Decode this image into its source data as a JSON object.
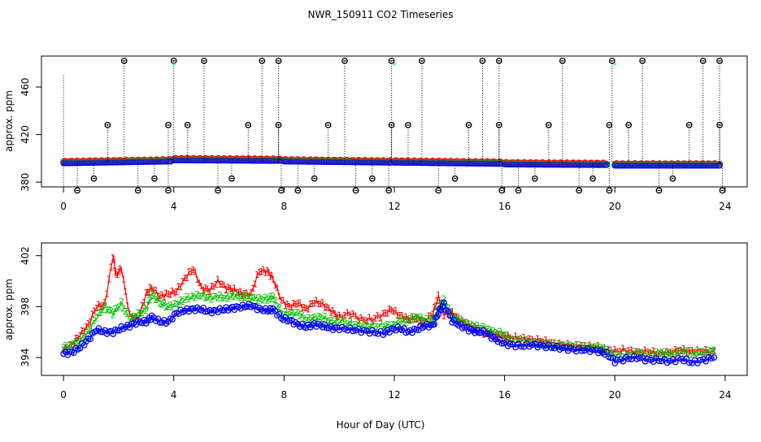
{
  "title": "NWR_150911  CO2 Timeseries",
  "xlabel": "Hour of Day (UTC)",
  "colors": {
    "red": "#ff0000",
    "green": "#00c000",
    "blue": "#0000ff",
    "cyan": "#00d0ff",
    "black": "#000000"
  },
  "chart_data": [
    {
      "type": "scatter",
      "name": "top-panel",
      "ylabel": "approx. ppm",
      "xlim": [
        -0.8,
        24.8
      ],
      "ylim": [
        376,
        486
      ],
      "x_ticks": [
        "0",
        "4",
        "8",
        "12",
        "16",
        "20",
        "24"
      ],
      "x_tick_values": [
        0,
        4,
        8,
        12,
        16,
        20,
        24
      ],
      "y_ticks": [
        "380",
        "420",
        "460"
      ],
      "y_tick_values": [
        380,
        420,
        460
      ],
      "baseline_segments": [
        {
          "x_start": 0.0,
          "x_end": 3.9,
          "y_start": 396.0,
          "y_end": 397.5
        },
        {
          "x_start": 4.0,
          "x_end": 7.9,
          "y_start": 398.5,
          "y_end": 398.0
        },
        {
          "x_start": 8.0,
          "x_end": 11.9,
          "y_start": 397.5,
          "y_end": 396.5
        },
        {
          "x_start": 12.0,
          "x_end": 15.9,
          "y_start": 396.5,
          "y_end": 395.5
        },
        {
          "x_start": 16.0,
          "x_end": 19.7,
          "y_start": 395.0,
          "y_end": 394.5
        },
        {
          "x_start": 20.0,
          "x_end": 23.8,
          "y_start": 394.0,
          "y_end": 394.0
        }
      ],
      "high_flags_hour": [
        2.2,
        4.0,
        5.1,
        7.2,
        7.8,
        10.2,
        11.9,
        13.0,
        15.2,
        15.8,
        18.1,
        19.9,
        21.0,
        23.2,
        23.8
      ],
      "high_flag_value": 482,
      "mid_flags_hour": [
        1.6,
        3.8,
        4.5,
        6.7,
        7.8,
        9.6,
        11.9,
        12.5,
        14.7,
        15.8,
        17.6,
        19.8,
        20.5,
        22.7,
        23.8
      ],
      "mid_flag_value": 428,
      "low_flags_hour": [
        0.5,
        2.7,
        3.8,
        5.6,
        7.9,
        8.5,
        10.6,
        11.8,
        13.6,
        15.9,
        16.5,
        18.7,
        19.8,
        21.6,
        23.9
      ],
      "low_flag_value": 373,
      "vlow_flags_hour": [
        1.1,
        3.3,
        6.1,
        9.1,
        11.2,
        14.2,
        17.1,
        19.2,
        22.1
      ],
      "vlow_flag_value": 383,
      "cyan_points": [
        {
          "x": 4.0,
          "y": 478
        },
        {
          "x": 12.0,
          "y": 478
        },
        {
          "x": 20.0,
          "y": 478
        }
      ]
    },
    {
      "type": "line",
      "name": "bottom-panel",
      "ylabel": "approx. ppm",
      "xlim": [
        -0.8,
        24.8
      ],
      "ylim": [
        392.6,
        403.0
      ],
      "x_ticks": [
        "0",
        "4",
        "8",
        "12",
        "16",
        "20",
        "24"
      ],
      "x_tick_values": [
        0,
        4,
        8,
        12,
        16,
        20,
        24
      ],
      "y_ticks": [
        "394",
        "398",
        "402"
      ],
      "y_tick_values": [
        394,
        398,
        402
      ],
      "series": [
        {
          "name": "1",
          "marker": "1",
          "color": "#ff0000",
          "x": [
            0.0,
            0.3,
            0.6,
            0.9,
            1.2,
            1.5,
            1.8,
            1.9,
            2.1,
            2.4,
            2.7,
            3.0,
            3.2,
            3.5,
            3.8,
            4.1,
            4.4,
            4.7,
            5.0,
            5.3,
            5.6,
            5.9,
            6.2,
            6.5,
            6.8,
            7.1,
            7.4,
            7.6,
            7.9,
            8.2,
            8.5,
            8.8,
            9.1,
            9.4,
            9.7,
            10.0,
            10.4,
            10.8,
            11.2,
            11.6,
            11.9,
            12.2,
            12.5,
            12.8,
            13.1,
            13.4,
            13.6,
            13.8,
            14.1,
            14.4,
            14.7,
            15.0,
            15.3,
            15.6,
            15.9,
            16.2,
            16.6,
            17.0,
            17.4,
            17.8,
            18.2,
            18.6,
            19.0,
            19.4,
            19.7,
            20.0,
            20.4,
            20.8,
            21.2,
            21.6,
            22.0,
            22.4,
            22.8,
            23.2,
            23.6
          ],
          "y": [
            394.6,
            395.0,
            395.8,
            396.6,
            398.0,
            398.2,
            402.0,
            400.5,
            401.0,
            397.3,
            397.0,
            399.0,
            399.5,
            398.8,
            399.0,
            399.2,
            400.2,
            401.0,
            399.5,
            399.3,
            400.0,
            399.5,
            399.3,
            399.0,
            399.0,
            400.8,
            400.8,
            400.2,
            398.5,
            398.0,
            398.3,
            397.8,
            398.4,
            398.2,
            397.7,
            397.2,
            397.5,
            397.0,
            397.0,
            397.4,
            397.8,
            397.3,
            397.0,
            397.1,
            396.8,
            397.5,
            398.8,
            397.4,
            397.5,
            396.9,
            396.5,
            396.2,
            395.9,
            395.8,
            395.7,
            395.6,
            395.5,
            395.4,
            395.3,
            395.1,
            395.0,
            394.9,
            394.9,
            394.8,
            394.6,
            394.5,
            394.6,
            394.4,
            394.5,
            394.3,
            394.4,
            394.6,
            394.5,
            394.5,
            394.5
          ]
        },
        {
          "name": "2",
          "marker": "2",
          "color": "#00c000",
          "x": [
            0.0,
            0.3,
            0.6,
            0.9,
            1.2,
            1.5,
            1.8,
            2.1,
            2.4,
            2.7,
            3.0,
            3.2,
            3.5,
            3.8,
            4.1,
            4.4,
            4.7,
            5.0,
            5.3,
            5.6,
            5.9,
            6.2,
            6.5,
            6.8,
            7.1,
            7.4,
            7.6,
            7.9,
            8.2,
            8.5,
            8.8,
            9.1,
            9.4,
            9.7,
            10.0,
            10.4,
            10.8,
            11.2,
            11.6,
            11.9,
            12.2,
            12.5,
            12.8,
            13.1,
            13.4,
            13.6,
            13.8,
            14.1,
            14.4,
            14.7,
            15.0,
            15.3,
            15.6,
            15.9,
            16.2,
            16.6,
            17.0,
            17.4,
            17.8,
            18.2,
            18.6,
            19.0,
            19.4,
            19.7,
            20.0,
            20.4,
            20.8,
            21.2,
            21.6,
            22.0,
            22.4,
            22.8,
            23.2,
            23.6
          ],
          "y": [
            394.8,
            395.0,
            395.3,
            396.0,
            397.2,
            398.0,
            397.5,
            398.3,
            397.0,
            397.4,
            397.8,
            399.0,
            398.3,
            398.0,
            398.2,
            398.6,
            398.8,
            398.9,
            398.7,
            398.8,
            398.7,
            398.9,
            398.8,
            398.7,
            398.6,
            398.6,
            398.8,
            397.5,
            397.4,
            397.5,
            397.0,
            397.1,
            397.2,
            396.8,
            396.9,
            396.7,
            396.6,
            396.5,
            396.5,
            396.5,
            396.9,
            396.9,
            397.2,
            396.9,
            397.0,
            397.8,
            398.5,
            397.2,
            396.9,
            396.6,
            396.4,
            396.3,
            396.0,
            395.9,
            395.4,
            395.3,
            395.2,
            395.1,
            395.0,
            394.9,
            394.9,
            394.8,
            394.8,
            394.5,
            394.2,
            394.2,
            394.4,
            394.2,
            394.4,
            394.3,
            394.5,
            394.3,
            394.4,
            394.6
          ]
        },
        {
          "name": "3",
          "marker": "3",
          "color": "#0000ff",
          "x": [
            0.0,
            0.3,
            0.6,
            0.9,
            1.2,
            1.5,
            1.8,
            2.1,
            2.4,
            2.7,
            3.0,
            3.2,
            3.5,
            3.8,
            4.1,
            4.4,
            4.7,
            5.0,
            5.3,
            5.6,
            5.9,
            6.2,
            6.5,
            6.8,
            7.1,
            7.4,
            7.6,
            7.9,
            8.2,
            8.5,
            8.8,
            9.1,
            9.4,
            9.7,
            10.0,
            10.4,
            10.8,
            11.2,
            11.6,
            11.9,
            12.2,
            12.5,
            12.8,
            13.1,
            13.4,
            13.6,
            13.8,
            14.1,
            14.4,
            14.7,
            15.0,
            15.3,
            15.6,
            15.9,
            16.2,
            16.6,
            17.0,
            17.4,
            17.8,
            18.2,
            18.6,
            19.0,
            19.4,
            19.7,
            20.0,
            20.4,
            20.8,
            21.2,
            21.6,
            22.0,
            22.4,
            22.8,
            23.2,
            23.6
          ],
          "y": [
            394.3,
            394.4,
            394.8,
            395.4,
            396.2,
            396.0,
            396.0,
            396.3,
            396.5,
            396.8,
            396.8,
            397.2,
            396.8,
            396.8,
            397.5,
            397.7,
            397.8,
            397.8,
            397.6,
            397.7,
            397.8,
            397.9,
            398.0,
            398.1,
            397.8,
            397.7,
            397.8,
            397.1,
            396.9,
            396.6,
            396.4,
            396.6,
            396.5,
            396.3,
            396.3,
            396.2,
            396.1,
            396.0,
            395.9,
            396.2,
            396.3,
            396.0,
            396.2,
            396.5,
            396.5,
            397.5,
            398.2,
            396.9,
            396.5,
            396.2,
            396.0,
            396.0,
            395.5,
            395.2,
            395.0,
            394.9,
            395.0,
            394.9,
            394.8,
            394.7,
            394.6,
            394.6,
            394.5,
            394.3,
            393.7,
            393.9,
            394.0,
            393.8,
            393.8,
            393.7,
            393.9,
            393.6,
            393.8,
            394.0
          ]
        }
      ]
    }
  ]
}
